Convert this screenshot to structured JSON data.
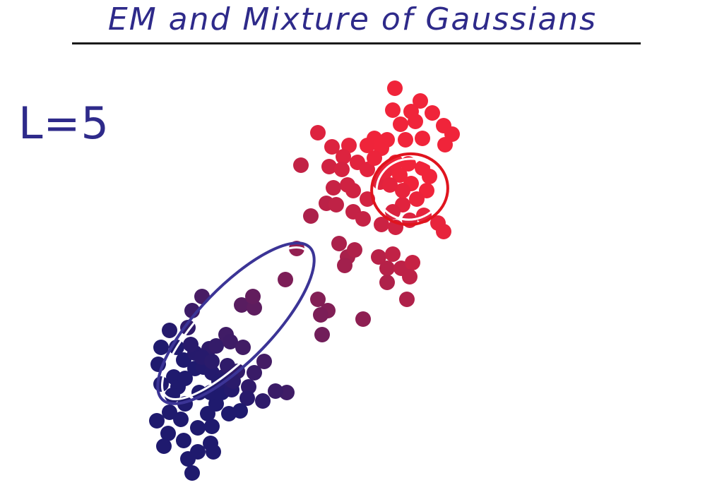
{
  "slide": {
    "title": "EM and Mixture of Gaussians",
    "iteration_label": "L=5"
  },
  "colors": {
    "ink": "#2e2a8a",
    "cluster_blue": "#1f1a6e",
    "cluster_red": "#f0243a",
    "rule": "#1a1a1a"
  },
  "components": [
    {
      "name": "blue-gaussian",
      "color": "#3b3496"
    },
    {
      "name": "red-gaussian",
      "color": "#e0141e"
    }
  ]
}
